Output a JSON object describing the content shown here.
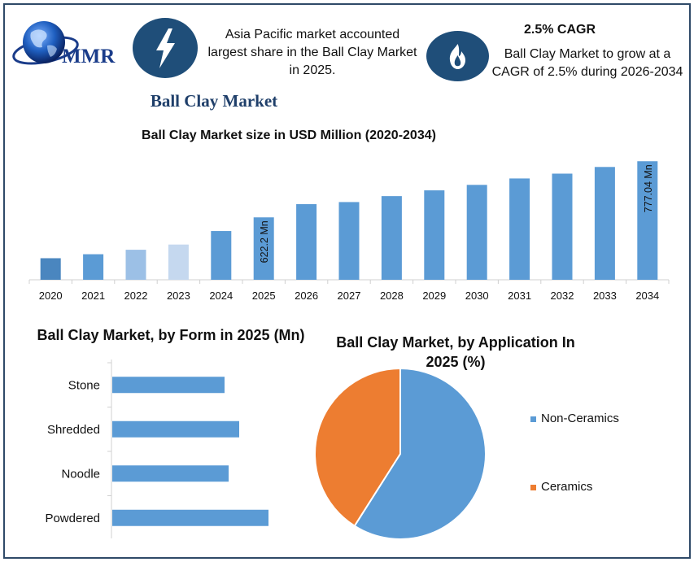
{
  "header": {
    "logo_text": "MMR",
    "highlight_1": "Asia Pacific market accounted largest share in the Ball Clay Market in 2025.",
    "cagr_title": "2.5% CAGR",
    "highlight_2": "Ball Clay Market to grow at a CAGR of 2.5% during 2026-2034",
    "icons": [
      "lightning-bolt-icon",
      "flame-icon"
    ],
    "title": "Ball Clay Market"
  },
  "colors": {
    "frame": "#2f4a68",
    "icon_bg": "#1f4e79",
    "bar": "#5b9bd5",
    "bar_2020": "#4a86bf",
    "bar_2022": "#9cc0e6",
    "bar_2023": "#c5d8ef",
    "pie_orange": "#ed7d31",
    "title_blue": "#1f3f6a"
  },
  "chart_data": [
    {
      "type": "bar",
      "title": "Ball Clay Market size in USD Million (2020-2034)",
      "categories": [
        "2020",
        "2021",
        "2022",
        "2023",
        "2024",
        "2025",
        "2026",
        "2027",
        "2028",
        "2029",
        "2030",
        "2031",
        "2032",
        "2033",
        "2034"
      ],
      "values": [
        509.5,
        520.5,
        532.8,
        547.2,
        584.5,
        622.2,
        658.6,
        664.4,
        680.8,
        696.7,
        711.8,
        729.5,
        742.8,
        761.2,
        777.04
      ],
      "data_labels": {
        "2025": "622.2 Mn",
        "2034": "777.04 Mn"
      },
      "ylim": [
        450,
        800
      ]
    },
    {
      "type": "bar",
      "orientation": "horizontal",
      "title": "Ball Clay Market, by Form in 2025 (Mn)",
      "categories": [
        "Stone",
        "Shredded",
        "Noodle",
        "Powdered"
      ],
      "values": [
        138,
        156,
        143,
        192
      ]
    },
    {
      "type": "pie",
      "title": "Ball Clay Market, by Application In 2025 (%)",
      "series": [
        {
          "name": "Non-Ceramics",
          "value": 59,
          "color": "#5b9bd5"
        },
        {
          "name": "Ceramics",
          "value": 41,
          "color": "#ed7d31"
        }
      ],
      "legend_position": "right"
    }
  ]
}
